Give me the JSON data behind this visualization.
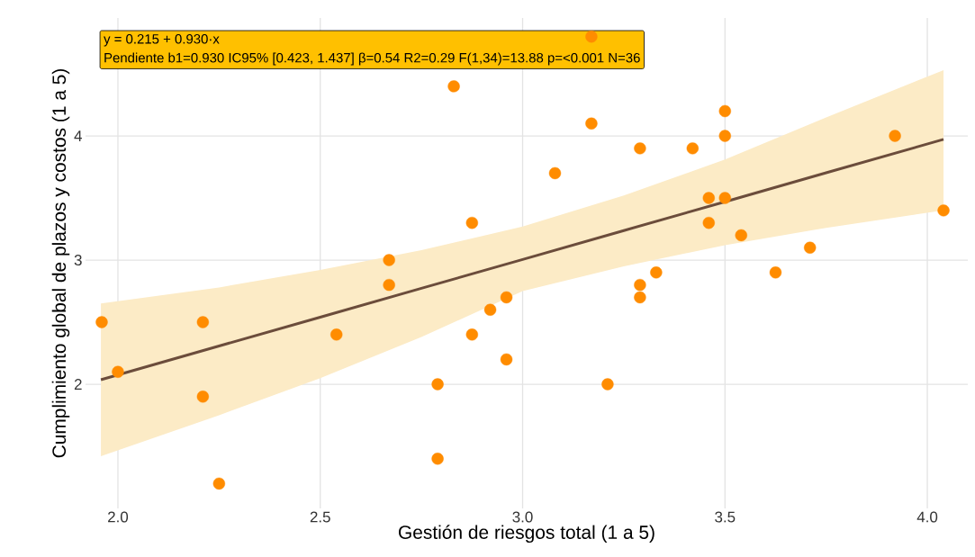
{
  "chart_data": {
    "type": "scatter",
    "xlabel": "Gestión de riesgos total (1 a 5)",
    "ylabel": "Cumplimiento global de plazos y costos (1 a 5)",
    "annotations": [
      "y = 0.215 + 0.930·x",
      "Pendiente b1=0.930  IC95% [0.423, 1.437]  β=0.54  R2=0.29  F(1,34)=13.88  p=<0.001  N=36"
    ],
    "xlim": [
      1.92,
      4.1
    ],
    "ylim": [
      1.0,
      4.95
    ],
    "xticks": [
      {
        "value": 2.0,
        "label": "2.0"
      },
      2.5,
      {
        "value": 3.0,
        "label": "3.0"
      },
      3.5,
      {
        "value": 4.0,
        "label": "4.0"
      }
    ],
    "yticks": [
      2,
      3,
      4
    ],
    "grid": true,
    "series": [
      {
        "type": "line",
        "color": "#6b4c3b",
        "line_style": "solid",
        "marker": "none",
        "x": [
          1.958,
          2.25,
          2.5,
          2.75,
          3.0,
          3.25,
          3.5,
          3.75,
          4.04
        ],
        "values": [
          2.036,
          2.308,
          2.54,
          2.773,
          3.005,
          3.238,
          3.47,
          3.703,
          3.972
        ],
        "lower": [
          1.42,
          1.75,
          2.05,
          2.38,
          2.75,
          2.95,
          3.12,
          3.26,
          3.4
        ],
        "upper": [
          2.65,
          2.78,
          2.92,
          3.08,
          3.27,
          3.52,
          3.81,
          4.15,
          4.53
        ]
      },
      {
        "color": "#ff8c00",
        "marker": "circle",
        "x": [
          1.96,
          2.0,
          2.21,
          2.21,
          2.25,
          2.54,
          2.67,
          2.67,
          2.79,
          2.79,
          2.83,
          2.875,
          2.875,
          2.92,
          2.96,
          2.96,
          3.08,
          3.17,
          3.17,
          3.21,
          3.29,
          3.29,
          3.29,
          3.33,
          3.42,
          3.46,
          3.46,
          3.5,
          3.5,
          3.5,
          3.54,
          3.625,
          3.71,
          3.92,
          4.04
        ],
        "values": [
          2.5,
          2.1,
          2.5,
          1.9,
          1.2,
          2.4,
          3.0,
          2.8,
          2.0,
          1.4,
          4.4,
          3.3,
          2.4,
          2.6,
          2.7,
          2.2,
          3.7,
          4.8,
          4.1,
          2.0,
          3.9,
          2.8,
          2.7,
          2.9,
          3.9,
          3.5,
          3.3,
          4.2,
          4.0,
          3.5,
          3.2,
          2.9,
          3.1,
          4.0,
          3.4
        ]
      }
    ]
  }
}
